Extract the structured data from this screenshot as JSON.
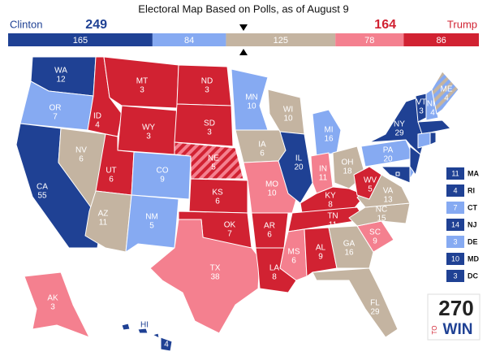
{
  "header": {
    "title": "Electoral Map Based on Polls, as of August 9",
    "left_name": "Clinton",
    "left_total": 249,
    "right_total": 164,
    "right_name": "Trump"
  },
  "bar": [
    {
      "value": 165,
      "color": "#1f4194"
    },
    {
      "value": 84,
      "color": "#86aaf2"
    },
    {
      "value": 125,
      "color": "#c4b4a1"
    },
    {
      "value": 78,
      "color": "#f4808f"
    },
    {
      "value": 86,
      "color": "#d12232"
    }
  ],
  "states": [
    {
      "abbr": "WA",
      "votes": 12,
      "color": "#1f4194"
    },
    {
      "abbr": "OR",
      "votes": 7,
      "color": "#86aaf2"
    },
    {
      "abbr": "CA",
      "votes": 55,
      "color": "#1f4194"
    },
    {
      "abbr": "NV",
      "votes": 6,
      "color": "#c4b4a1"
    },
    {
      "abbr": "ID",
      "votes": 4,
      "color": "#d12232"
    },
    {
      "abbr": "MT",
      "votes": 3,
      "color": "#d12232"
    },
    {
      "abbr": "WY",
      "votes": 3,
      "color": "#d12232"
    },
    {
      "abbr": "UT",
      "votes": 6,
      "color": "#d12232"
    },
    {
      "abbr": "AZ",
      "votes": 11,
      "color": "#c4b4a1"
    },
    {
      "abbr": "CO",
      "votes": 9,
      "color": "#86aaf2"
    },
    {
      "abbr": "NM",
      "votes": 5,
      "color": "#86aaf2"
    },
    {
      "abbr": "ND",
      "votes": 3,
      "color": "#d12232"
    },
    {
      "abbr": "SD",
      "votes": 3,
      "color": "#d12232"
    },
    {
      "abbr": "NE",
      "votes": 5,
      "color": "#d12232",
      "stripe_color": "#f4808f"
    },
    {
      "abbr": "KS",
      "votes": 6,
      "color": "#d12232"
    },
    {
      "abbr": "OK",
      "votes": 7,
      "color": "#d12232"
    },
    {
      "abbr": "TX",
      "votes": 38,
      "color": "#f4808f"
    },
    {
      "abbr": "MN",
      "votes": 10,
      "color": "#86aaf2"
    },
    {
      "abbr": "IA",
      "votes": 6,
      "color": "#c4b4a1"
    },
    {
      "abbr": "MO",
      "votes": 10,
      "color": "#f4808f"
    },
    {
      "abbr": "AR",
      "votes": 6,
      "color": "#d12232"
    },
    {
      "abbr": "LA",
      "votes": 8,
      "color": "#d12232"
    },
    {
      "abbr": "WI",
      "votes": 10,
      "color": "#c4b4a1"
    },
    {
      "abbr": "IL",
      "votes": 20,
      "color": "#1f4194"
    },
    {
      "abbr": "MI",
      "votes": 16,
      "color": "#86aaf2"
    },
    {
      "abbr": "IN",
      "votes": 11,
      "color": "#f4808f"
    },
    {
      "abbr": "OH",
      "votes": 18,
      "color": "#c4b4a1"
    },
    {
      "abbr": "KY",
      "votes": 8,
      "color": "#d12232"
    },
    {
      "abbr": "TN",
      "votes": 11,
      "color": "#d12232"
    },
    {
      "abbr": "MS",
      "votes": 6,
      "color": "#f4808f"
    },
    {
      "abbr": "AL",
      "votes": 9,
      "color": "#d12232"
    },
    {
      "abbr": "GA",
      "votes": 16,
      "color": "#c4b4a1"
    },
    {
      "abbr": "FL",
      "votes": 29,
      "color": "#c4b4a1"
    },
    {
      "abbr": "SC",
      "votes": 9,
      "color": "#f4808f"
    },
    {
      "abbr": "NC",
      "votes": 15,
      "color": "#c4b4a1"
    },
    {
      "abbr": "VA",
      "votes": 13,
      "color": "#c4b4a1"
    },
    {
      "abbr": "WV",
      "votes": 5,
      "color": "#d12232"
    },
    {
      "abbr": "PA",
      "votes": 20,
      "color": "#86aaf2"
    },
    {
      "abbr": "NY",
      "votes": 29,
      "color": "#1f4194"
    },
    {
      "abbr": "VT",
      "votes": 3,
      "color": "#1f4194"
    },
    {
      "abbr": "NH",
      "votes": 4,
      "color": "#86aaf2"
    },
    {
      "abbr": "ME",
      "votes": 4,
      "color": "#86aaf2",
      "stripe_color": "#c4b4a1"
    },
    {
      "abbr": "AK",
      "votes": 3,
      "color": "#f4808f"
    },
    {
      "abbr": "HI",
      "votes": 4,
      "color": "#1f4194"
    }
  ],
  "small_states": [
    {
      "abbr": "MA",
      "votes": 11,
      "color": "#1f4194"
    },
    {
      "abbr": "RI",
      "votes": 4,
      "color": "#1f4194"
    },
    {
      "abbr": "CT",
      "votes": 7,
      "color": "#86aaf2"
    },
    {
      "abbr": "NJ",
      "votes": 14,
      "color": "#1f4194"
    },
    {
      "abbr": "DE",
      "votes": 3,
      "color": "#86aaf2"
    },
    {
      "abbr": "MD",
      "votes": 10,
      "color": "#1f4194"
    },
    {
      "abbr": "DC",
      "votes": 3,
      "color": "#1f4194"
    }
  ],
  "logo": {
    "number": "270",
    "middle": "TO",
    "bottom": "WIN"
  }
}
